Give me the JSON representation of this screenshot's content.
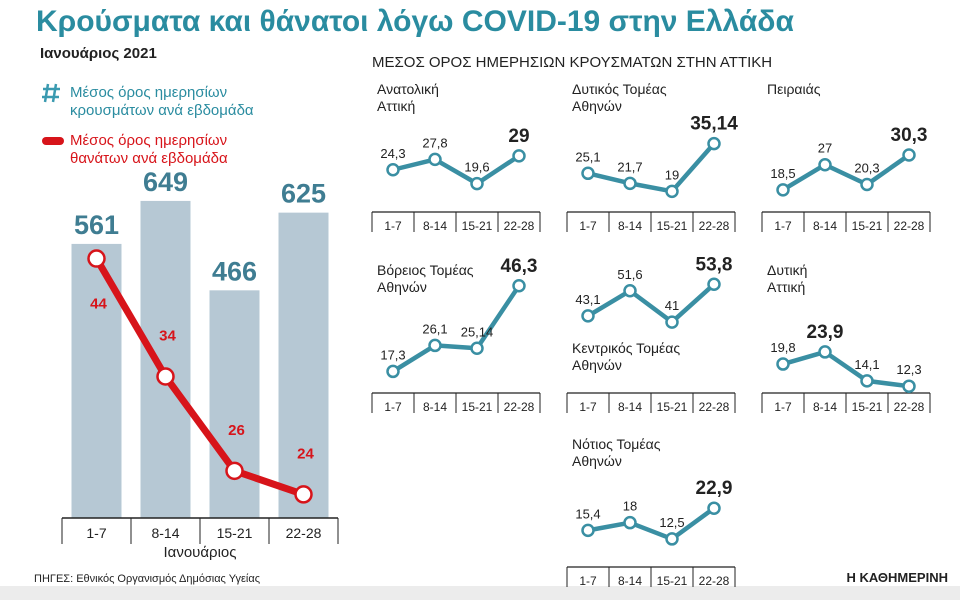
{
  "header": {
    "title": "Κρούσματα και θάνατοι λόγω COVID-19 στην Ελλάδα",
    "subtitle": "Ιανουάριος 2021"
  },
  "panel_title": "ΜΕΣΟΣ ΟΡΟΣ ΗΜΕΡΗΣΙΩΝ ΚΡΟΥΣΜΑΤΩΝ ΣΤΗΝ ΑΤΤΙΚΗ",
  "footer": {
    "source": "ΠΗΓΕΣ: Εθνικός Οργανισμός Δημόσιας Υγείας",
    "brand": "Η ΚΑΘΗΜΕΡΙΝΗ"
  },
  "chart_data": [
    {
      "type": "bar",
      "categories": [
        "1-7",
        "8-14",
        "15-21",
        "22-28"
      ],
      "xlabel": "Ιανουάριος",
      "ylim": [
        0,
        700
      ],
      "y2lim": [
        22,
        51
      ],
      "series": [
        {
          "name": "Μέσος όρος ημερησίων\nκρουσμάτων ανά εβδομάδα",
          "type": "bar",
          "color": "#b6c8d4",
          "values": [
            561,
            649,
            466,
            625
          ]
        },
        {
          "name": "Μέσος όρος ημερησίων\nθανάτων ανά εβδομάδα",
          "type": "line",
          "axis": "y2",
          "color": "#d7141a",
          "values": [
            44,
            34,
            26,
            24
          ]
        }
      ]
    },
    {
      "type": "line",
      "title": "Ανατολική\nΑττική",
      "categories": [
        "1-7",
        "8-14",
        "15-21",
        "22-28"
      ],
      "values": [
        24.3,
        27.8,
        19.6,
        29
      ],
      "value_labels": [
        "24,3",
        "27,8",
        "19,6",
        "29"
      ],
      "color": "#3a8fa3",
      "ylim": [
        10,
        54
      ]
    },
    {
      "type": "line",
      "title": "Δυτικός Τομέας\nΑθηνών",
      "categories": [
        "1-7",
        "8-14",
        "15-21",
        "22-28"
      ],
      "values": [
        25.1,
        21.7,
        19,
        35.14
      ],
      "value_labels": [
        "25,1",
        "21,7",
        "19",
        "35,14"
      ],
      "color": "#3a8fa3",
      "ylim": [
        12,
        56
      ]
    },
    {
      "type": "line",
      "title": "Πειραιάς",
      "categories": [
        "1-7",
        "8-14",
        "15-21",
        "22-28"
      ],
      "values": [
        18.5,
        27,
        20.3,
        30.3
      ],
      "value_labels": [
        "18,5",
        "27",
        "20,3",
        "30,3"
      ],
      "color": "#3a8fa3",
      "ylim": [
        11,
        55
      ]
    },
    {
      "type": "line",
      "title": "Βόρειος Τομέας\nΑθηνών",
      "categories": [
        "1-7",
        "8-14",
        "15-21",
        "22-28"
      ],
      "values": [
        17.3,
        26.1,
        25.14,
        46.3
      ],
      "value_labels": [
        "17,3",
        "26,1",
        "25,14",
        "46,3"
      ],
      "color": "#3a8fa3",
      "ylim": [
        10,
        54
      ]
    },
    {
      "type": "line",
      "title": "Κεντρικός Τομέας\nΑθηνών",
      "categories": [
        "1-7",
        "8-14",
        "15-21",
        "22-28"
      ],
      "values": [
        43.1,
        51.6,
        41,
        53.8
      ],
      "value_labels": [
        "43,1",
        "51,6",
        "41",
        "53,8"
      ],
      "color": "#3a8fa3",
      "ylim": [
        17,
        61
      ]
    },
    {
      "type": "line",
      "title": "Δυτική\nΑττική",
      "categories": [
        "1-7",
        "8-14",
        "15-21",
        "22-28"
      ],
      "values": [
        19.8,
        23.9,
        14.1,
        12.3
      ],
      "value_labels": [
        "19,8",
        "23,9",
        "14,1",
        "12,3"
      ],
      "color": "#3a8fa3",
      "ylim": [
        10,
        54
      ]
    },
    {
      "type": "line",
      "title": "Νότιος Τομέας\nΑθηνών",
      "categories": [
        "1-7",
        "8-14",
        "15-21",
        "22-28"
      ],
      "values": [
        15.4,
        18,
        12.5,
        22.9
      ],
      "value_labels": [
        "15,4",
        "18",
        "12,5",
        "22,9"
      ],
      "color": "#3a8fa3",
      "ylim": [
        3,
        47
      ]
    }
  ]
}
